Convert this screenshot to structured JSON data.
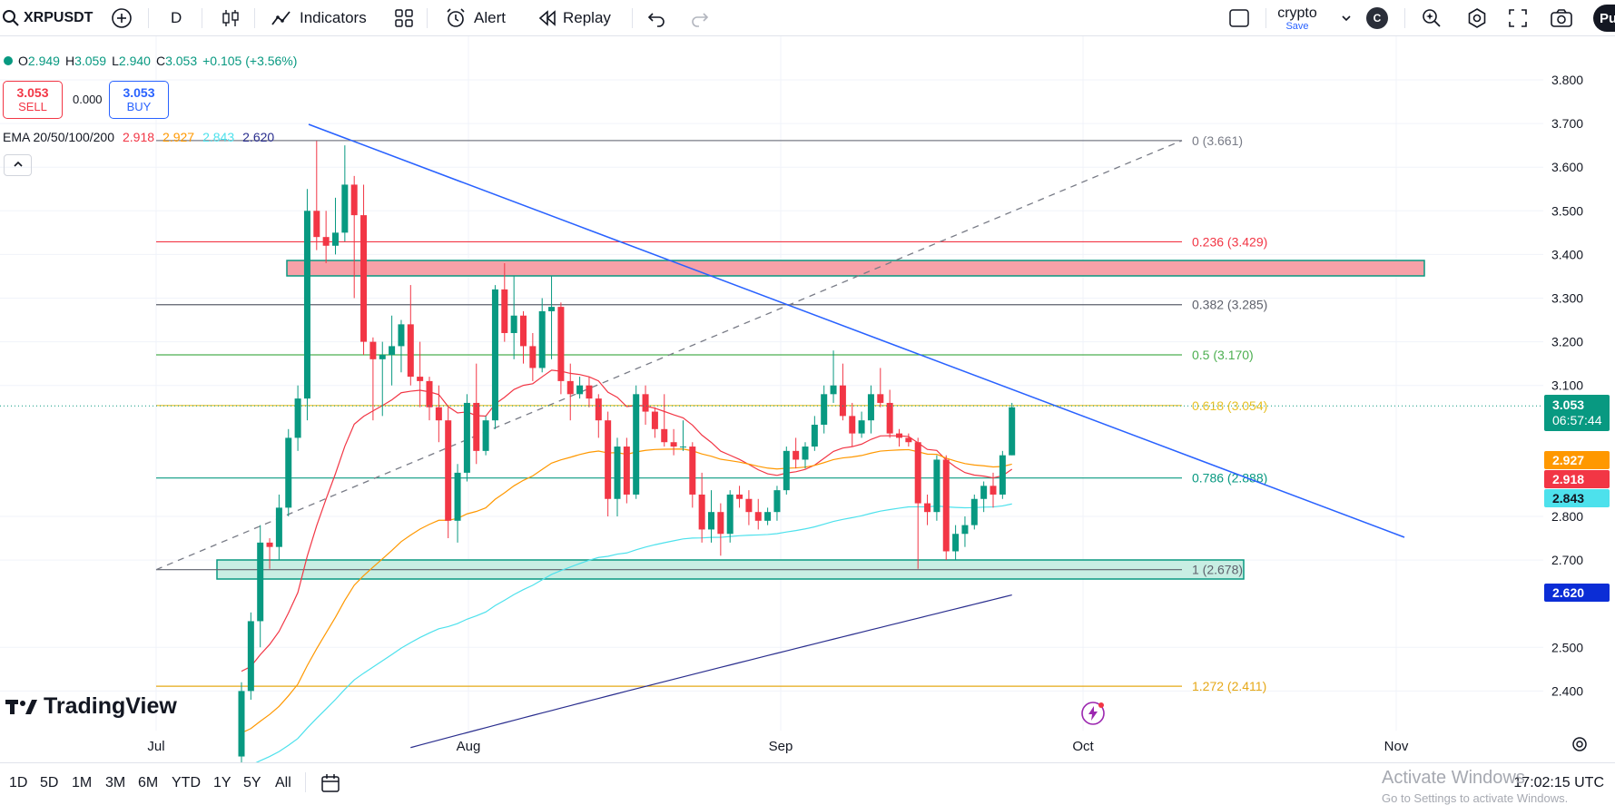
{
  "toolbar": {
    "symbol": "XRPUSDT",
    "interval": "D",
    "indicators_label": "Indicators",
    "alert_label": "Alert",
    "replay_label": "Replay",
    "layout_name": "crypto",
    "layout_status": "Save",
    "avatar_letter": "C",
    "publish_label": "Pu"
  },
  "legend": {
    "o_label": "O",
    "o": "2.949",
    "h_label": "H",
    "h": "3.059",
    "l_label": "L",
    "l": "2.940",
    "c_label": "C",
    "c": "3.053",
    "change": "+0.105 (+3.56%)"
  },
  "trade": {
    "sell_price": "3.053",
    "sell_label": "SELL",
    "spread": "0.000",
    "buy_price": "3.053",
    "buy_label": "BUY"
  },
  "ema": {
    "label": "EMA 20/50/100/200",
    "v20": "2.918",
    "v50": "2.927",
    "v100": "2.843",
    "v200": "2.620",
    "colors": {
      "ema20": "#f23645",
      "ema50": "#ff9800",
      "ema100": "#4de1ec",
      "ema200": "#2a2e8e"
    }
  },
  "price_axis": {
    "ticks": [
      "3.800",
      "3.700",
      "3.600",
      "3.500",
      "3.400",
      "3.300",
      "3.200",
      "3.100",
      "2.800",
      "2.700",
      "2.500",
      "2.400"
    ],
    "tick_values": [
      3.8,
      3.7,
      3.6,
      3.5,
      3.4,
      3.3,
      3.2,
      3.1,
      2.8,
      2.7,
      2.5,
      2.4
    ],
    "last_price": "3.053",
    "countdown": "06:57:44",
    "ema50_tag": "2.927",
    "ema20_tag": "2.918",
    "ema100_tag": "2.843",
    "ema200_tag": "2.620"
  },
  "time_axis": {
    "labels": [
      "Jul",
      "Aug",
      "Sep",
      "Oct",
      "Nov"
    ]
  },
  "fib": [
    {
      "label": "0 (3.661)",
      "value": 3.661,
      "color": "#787b86"
    },
    {
      "label": "0.236 (3.429)",
      "value": 3.429,
      "color": "#f23645"
    },
    {
      "label": "0.382 (3.285)",
      "value": 3.285,
      "color": "#5d606b"
    },
    {
      "label": "0.5 (3.170)",
      "value": 3.17,
      "color": "#4caf50"
    },
    {
      "label": "0.618 (3.054)",
      "value": 3.054,
      "color": "#e6c026"
    },
    {
      "label": "0.786 (2.888)",
      "value": 2.888,
      "color": "#089981"
    },
    {
      "label": "1 (2.678)",
      "value": 2.678,
      "color": "#5d606b"
    },
    {
      "label": "1.272 (2.411)",
      "value": 2.411,
      "color": "#e6a817"
    }
  ],
  "colors": {
    "up": "#089981",
    "down": "#f23645",
    "trendline": "#2962ff"
  },
  "candles": [
    [
      2.25,
      2.42,
      2.2,
      2.4
    ],
    [
      2.4,
      2.58,
      2.38,
      2.56
    ],
    [
      2.56,
      2.78,
      2.5,
      2.74
    ],
    [
      2.74,
      2.75,
      2.68,
      2.73
    ],
    [
      2.73,
      2.85,
      2.7,
      2.82
    ],
    [
      2.82,
      3.0,
      2.8,
      2.98
    ],
    [
      2.98,
      3.1,
      2.95,
      3.07
    ],
    [
      3.07,
      3.55,
      3.02,
      3.5
    ],
    [
      3.5,
      3.66,
      3.41,
      3.44
    ],
    [
      3.44,
      3.5,
      3.38,
      3.42
    ],
    [
      3.42,
      3.53,
      3.4,
      3.45
    ],
    [
      3.45,
      3.65,
      3.43,
      3.56
    ],
    [
      3.56,
      3.58,
      3.3,
      3.49
    ],
    [
      3.49,
      3.56,
      3.17,
      3.2
    ],
    [
      3.2,
      3.21,
      3.02,
      3.16
    ],
    [
      3.16,
      3.2,
      3.03,
      3.17
    ],
    [
      3.17,
      3.26,
      3.1,
      3.19
    ],
    [
      3.19,
      3.25,
      3.13,
      3.24
    ],
    [
      3.24,
      3.33,
      3.1,
      3.12
    ],
    [
      3.12,
      3.2,
      3.05,
      3.11
    ],
    [
      3.11,
      3.12,
      3.02,
      3.05
    ],
    [
      3.05,
      3.1,
      2.97,
      3.02
    ],
    [
      3.02,
      3.05,
      2.75,
      2.79
    ],
    [
      2.79,
      2.92,
      2.74,
      2.9
    ],
    [
      2.9,
      3.08,
      2.88,
      3.06
    ],
    [
      3.06,
      3.15,
      2.92,
      2.95
    ],
    [
      2.95,
      3.03,
      2.94,
      3.02
    ],
    [
      3.02,
      3.33,
      3.0,
      3.32
    ],
    [
      3.32,
      3.38,
      3.2,
      3.22
    ],
    [
      3.22,
      3.35,
      3.16,
      3.26
    ],
    [
      3.26,
      3.27,
      3.15,
      3.19
    ],
    [
      3.19,
      3.22,
      3.11,
      3.14
    ],
    [
      3.14,
      3.3,
      3.13,
      3.27
    ],
    [
      3.27,
      3.35,
      3.16,
      3.28
    ],
    [
      3.28,
      3.29,
      3.08,
      3.11
    ],
    [
      3.11,
      3.15,
      3.02,
      3.08
    ],
    [
      3.08,
      3.12,
      3.07,
      3.1
    ],
    [
      3.1,
      3.12,
      3.05,
      3.07
    ],
    [
      3.07,
      3.08,
      2.98,
      3.02
    ],
    [
      3.02,
      3.04,
      2.8,
      2.84
    ],
    [
      2.84,
      2.98,
      2.8,
      2.96
    ],
    [
      2.96,
      2.98,
      2.83,
      2.85
    ],
    [
      2.85,
      3.1,
      2.84,
      3.08
    ],
    [
      3.08,
      3.1,
      3.01,
      3.04
    ],
    [
      3.04,
      3.05,
      2.98,
      3.0
    ],
    [
      3.0,
      3.08,
      2.96,
      2.97
    ],
    [
      2.97,
      3.0,
      2.94,
      2.96
    ],
    [
      2.96,
      3.02,
      2.95,
      2.96
    ],
    [
      2.96,
      2.97,
      2.82,
      2.85
    ],
    [
      2.85,
      2.9,
      2.74,
      2.77
    ],
    [
      2.77,
      2.86,
      2.74,
      2.81
    ],
    [
      2.81,
      2.83,
      2.71,
      2.76
    ],
    [
      2.76,
      2.86,
      2.74,
      2.85
    ],
    [
      2.85,
      2.87,
      2.82,
      2.84
    ],
    [
      2.84,
      2.86,
      2.78,
      2.81
    ],
    [
      2.81,
      2.84,
      2.77,
      2.79
    ],
    [
      2.79,
      2.82,
      2.78,
      2.81
    ],
    [
      2.81,
      2.87,
      2.79,
      2.86
    ],
    [
      2.86,
      2.96,
      2.85,
      2.95
    ],
    [
      2.95,
      2.98,
      2.91,
      2.93
    ],
    [
      2.93,
      2.97,
      2.91,
      2.96
    ],
    [
      2.96,
      3.03,
      2.95,
      3.01
    ],
    [
      3.01,
      3.1,
      2.99,
      3.08
    ],
    [
      3.08,
      3.18,
      3.06,
      3.1
    ],
    [
      3.1,
      3.15,
      3.02,
      3.03
    ],
    [
      3.03,
      3.06,
      2.96,
      2.99
    ],
    [
      2.99,
      3.04,
      2.98,
      3.02
    ],
    [
      3.02,
      3.1,
      2.99,
      3.08
    ],
    [
      3.08,
      3.14,
      3.05,
      3.06
    ],
    [
      3.06,
      3.09,
      2.98,
      2.99
    ],
    [
      2.99,
      3.0,
      2.96,
      2.98
    ],
    [
      2.98,
      2.99,
      2.96,
      2.97
    ],
    [
      2.97,
      2.98,
      2.68,
      2.83
    ],
    [
      2.83,
      2.85,
      2.78,
      2.81
    ],
    [
      2.81,
      2.94,
      2.79,
      2.93
    ],
    [
      2.93,
      2.94,
      2.7,
      2.72
    ],
    [
      2.72,
      2.78,
      2.7,
      2.76
    ],
    [
      2.76,
      2.8,
      2.73,
      2.78
    ],
    [
      2.78,
      2.85,
      2.77,
      2.84
    ],
    [
      2.84,
      2.88,
      2.81,
      2.87
    ],
    [
      2.87,
      2.9,
      2.82,
      2.85
    ],
    [
      2.85,
      2.95,
      2.84,
      2.94
    ],
    [
      2.94,
      3.06,
      2.94,
      3.05
    ]
  ]
}
